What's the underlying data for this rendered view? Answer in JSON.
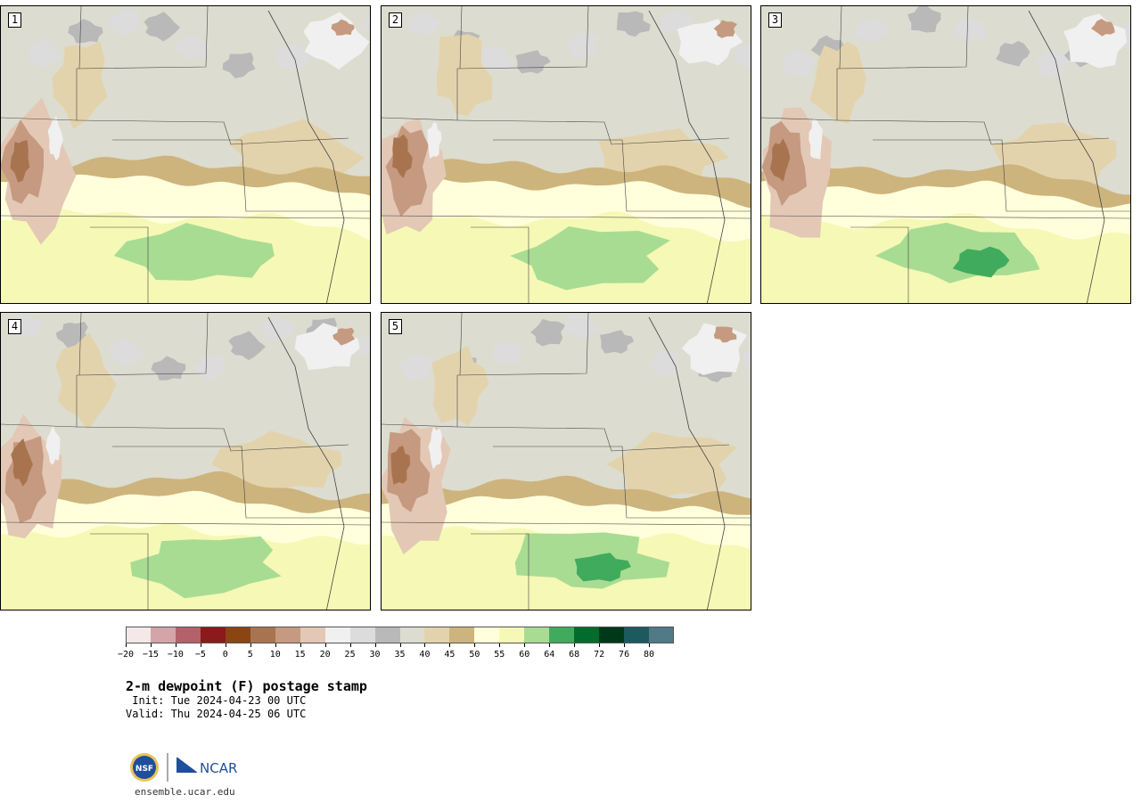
{
  "panels": [
    {
      "label": "1"
    },
    {
      "label": "2"
    },
    {
      "label": "3"
    },
    {
      "label": "4"
    },
    {
      "label": "5"
    }
  ],
  "colorbar": {
    "colors": [
      "#f5e8e8",
      "#d3a5a8",
      "#b5616b",
      "#8b1a1a",
      "#8b4513",
      "#a87450",
      "#c59a80",
      "#e3c8b6",
      "#f0f0f0",
      "#dcdcdc",
      "#b9b9b9",
      "#dcdcd0",
      "#e3d3ac",
      "#cdb47d",
      "#ffffdc",
      "#f5f9b5",
      "#a9dc93",
      "#41ab5d",
      "#006d2c",
      "#00391a",
      "#1d5a5e",
      "#507a86"
    ],
    "ticks": [
      "−20",
      "−15",
      "−10",
      "−5",
      "0",
      "5",
      "10",
      "15",
      "20",
      "25",
      "30",
      "35",
      "40",
      "45",
      "50",
      "55",
      "60",
      "64",
      "68",
      "72",
      "76",
      "80"
    ]
  },
  "title": {
    "main": "2-m dewpoint (F) postage stamp",
    "init": " Init: Tue 2024-04-23 00 UTC",
    "valid": "Valid: Thu 2024-04-25 06 UTC"
  },
  "logos": {
    "nsf": "NSF",
    "ncar": "NCAR",
    "url": "ensemble.ucar.edu"
  }
}
